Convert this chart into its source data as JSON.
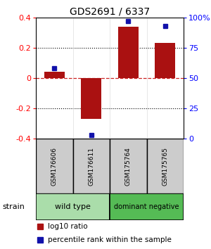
{
  "title": "GDS2691 / 6337",
  "samples": [
    "GSM176606",
    "GSM176611",
    "GSM175764",
    "GSM175765"
  ],
  "log10_ratio": [
    0.04,
    -0.27,
    0.34,
    0.23
  ],
  "percentile_rank": [
    58,
    3,
    97,
    93
  ],
  "ylim_log": [
    -0.4,
    0.4
  ],
  "ylim_pct": [
    0,
    100
  ],
  "yticks_log": [
    -0.4,
    -0.2,
    0.0,
    0.2,
    0.4
  ],
  "yticks_pct": [
    0,
    25,
    50,
    75,
    100
  ],
  "ytick_labels_log": [
    "-0.4",
    "-0.2",
    "0",
    "0.2",
    "0.4"
  ],
  "ytick_labels_pct": [
    "0",
    "25",
    "50",
    "75",
    "100%"
  ],
  "groups": [
    {
      "label": "wild type",
      "samples_idx": [
        0,
        1
      ],
      "color": "#AADDAA"
    },
    {
      "label": "dominant negative",
      "samples_idx": [
        2,
        3
      ],
      "color": "#55BB55"
    }
  ],
  "bar_color": "#AA1111",
  "dot_color": "#1111AA",
  "zero_line_color": "#CC2222",
  "dotted_color": "#000000",
  "sample_box_color": "#CCCCCC",
  "background_color": "#FFFFFF",
  "legend_log10_label": "log10 ratio",
  "legend_pct_label": "percentile rank within the sample",
  "strain_label": "strain"
}
